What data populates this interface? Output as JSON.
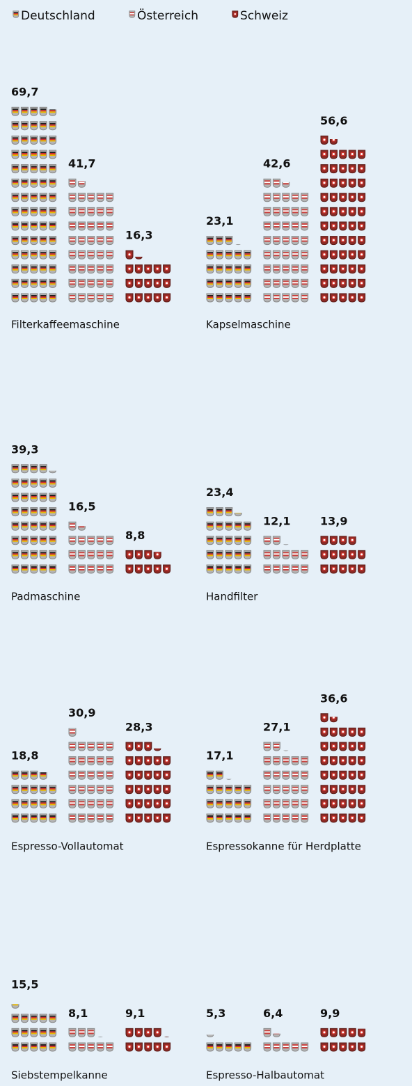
{
  "chart_data": {
    "type": "pictogram",
    "categories": [
      "Filterkaffeemaschine",
      "Kapselmaschine",
      "Padmaschine",
      "Handfilter",
      "Espresso-Vollautomat",
      "Espressokanne für Herdplatte",
      "Siebstempelkanne",
      "Espresso-Halbautomat"
    ],
    "series": [
      {
        "name": "Deutschland",
        "color": "#b5b5b5",
        "values": [
          69.7,
          23.1,
          39.3,
          23.4,
          18.8,
          17.1,
          15.5,
          5.3
        ],
        "value_labels": [
          "69,7",
          "23,1",
          "39,3",
          "23,4",
          "18,8",
          "17,1",
          "15,5",
          "5,3"
        ]
      },
      {
        "name": "Österreich",
        "color": "#c9423f",
        "values": [
          41.7,
          42.6,
          16.5,
          12.1,
          30.9,
          27.1,
          8.1,
          6.4
        ],
        "value_labels": [
          "41,7",
          "42,6",
          "16,5",
          "12,1",
          "30,9",
          "27,1",
          "8,1",
          "6,4"
        ]
      },
      {
        "name": "Schweiz",
        "color": "#8e2a25",
        "values": [
          16.3,
          56.6,
          8.8,
          13.9,
          28.3,
          36.6,
          9.1,
          9.9
        ],
        "value_labels": [
          "16,3",
          "56,6",
          "8,8",
          "13,9",
          "28,3",
          "36,6",
          "9,1",
          "9,9"
        ]
      }
    ]
  }
}
